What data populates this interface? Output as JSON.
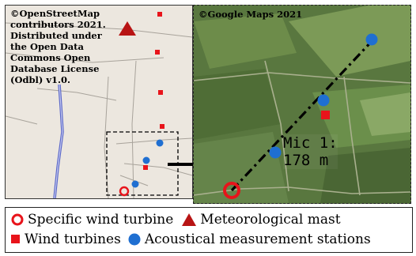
{
  "street_map": {
    "credit": "©OpenStreetMap\ncontributors 2021.\nDistributed under\nthe Open Data\nCommons Open\nDatabase License\n(Odbl) v1.0."
  },
  "satellite_map": {
    "credit": "©Google Maps 2021",
    "mic_label_line1": "Mic 1:",
    "mic_label_line2": "178 m"
  },
  "legend": {
    "specific_turbine": "Specific wind turbine",
    "met_mast": "Meteorological mast",
    "wind_turbines": "Wind turbines",
    "stations": "Acoustical measurement stations"
  },
  "colors": {
    "turbine_red": "#e8141b",
    "mast_red": "#b81414",
    "station_blue": "#1f6fd1",
    "road_blue": "#5a67c8"
  }
}
